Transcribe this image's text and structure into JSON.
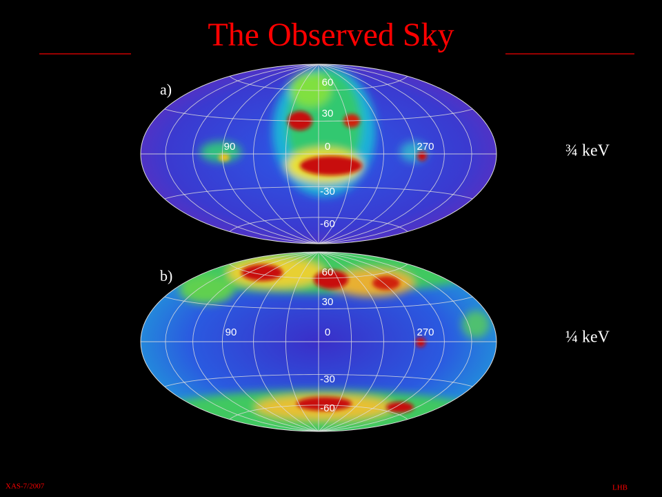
{
  "title": "The Observed Sky",
  "panels": [
    {
      "label": "a)",
      "energy": "¾ keV",
      "lat_labels": [
        "60",
        "30",
        "0",
        "-30",
        "-60"
      ],
      "lon_labels": [
        "90",
        "270"
      ]
    },
    {
      "label": "b)",
      "energy": "¼ keV",
      "lat_labels": [
        "60",
        "30",
        "0",
        "-30",
        "-60"
      ],
      "lon_labels": [
        "90",
        "270"
      ]
    }
  ],
  "footer": {
    "left": "XAS-7/2007",
    "right": "LHB"
  }
}
